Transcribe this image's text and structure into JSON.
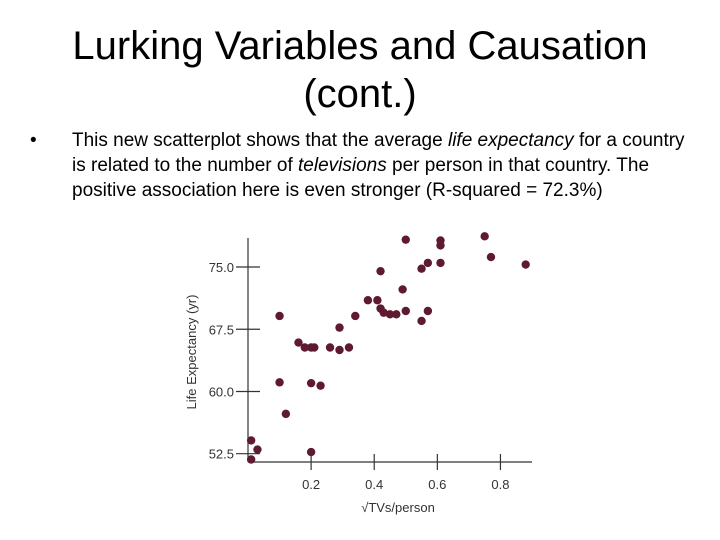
{
  "slide": {
    "title_line1": "Lurking Variables and Causation",
    "title_line2": "(cont.)",
    "bullet_marker": "•",
    "bullet_parts": [
      "This new scatterplot shows that the average ",
      "life expectancy",
      " for a country is related to the number of ",
      "televisions",
      " per person in that country. The positive association here is even stronger (R-squared = 72.3%)"
    ]
  },
  "colors": {
    "point": "#5e1a2e",
    "axis": "#333333"
  },
  "chart_data": {
    "type": "scatter",
    "title": "",
    "xlabel": "√TVs/person",
    "ylabel": "Life Expectancy (yr)",
    "xlim": [
      0,
      0.9
    ],
    "ylim": [
      51.5,
      78.5
    ],
    "xticks": [
      0.2,
      0.4,
      0.6,
      0.8
    ],
    "xtick_labels": [
      "0.2",
      "0.4",
      "0.6",
      "0.8"
    ],
    "yticks": [
      52.5,
      60.0,
      67.5,
      75.0
    ],
    "ytick_labels": [
      "52.5",
      "60.0",
      "67.5",
      "75.0"
    ],
    "grid": false,
    "points": [
      [
        0.01,
        54.1
      ],
      [
        0.03,
        53.0
      ],
      [
        0.01,
        51.8
      ],
      [
        0.12,
        57.3
      ],
      [
        0.1,
        61.1
      ],
      [
        0.1,
        69.1
      ],
      [
        0.2,
        61.0
      ],
      [
        0.2,
        52.7
      ],
      [
        0.23,
        60.7
      ],
      [
        0.16,
        65.9
      ],
      [
        0.18,
        65.3
      ],
      [
        0.2,
        65.3
      ],
      [
        0.21,
        65.3
      ],
      [
        0.26,
        65.3
      ],
      [
        0.29,
        65.0
      ],
      [
        0.32,
        65.3
      ],
      [
        0.29,
        67.7
      ],
      [
        0.34,
        69.1
      ],
      [
        0.38,
        71.0
      ],
      [
        0.41,
        71.0
      ],
      [
        0.42,
        70.0
      ],
      [
        0.43,
        69.5
      ],
      [
        0.45,
        69.3
      ],
      [
        0.47,
        69.3
      ],
      [
        0.5,
        69.7
      ],
      [
        0.49,
        72.3
      ],
      [
        0.42,
        74.5
      ],
      [
        0.5,
        78.3
      ],
      [
        0.55,
        68.5
      ],
      [
        0.57,
        69.7
      ],
      [
        0.55,
        74.8
      ],
      [
        0.57,
        75.5
      ],
      [
        0.61,
        75.5
      ],
      [
        0.61,
        77.6
      ],
      [
        0.61,
        78.2
      ],
      [
        0.75,
        78.7
      ],
      [
        0.77,
        76.2
      ],
      [
        0.88,
        75.3
      ]
    ]
  }
}
